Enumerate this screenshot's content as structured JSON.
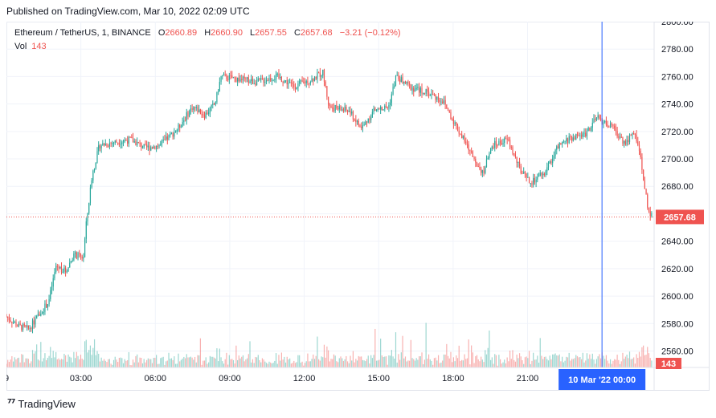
{
  "published": "Published on TradingView.com, Mar 10, 2022 02:09 UTC",
  "legend": {
    "symbol": "Ethereum / TetherUS, 1, BINANCE",
    "open_label": "O",
    "open": "2660.89",
    "high_label": "H",
    "high": "2660.90",
    "low_label": "L",
    "low": "2657.55",
    "close_label": "C",
    "close": "2657.68",
    "change": "−3.21 (−0.12%)",
    "vol_label": "Vol",
    "vol": "143"
  },
  "footer": {
    "brand": "TradingView"
  },
  "colors": {
    "up": "#26a69a",
    "down": "#ef5350",
    "crosshair": "#2962ff",
    "grid": "#f0f3fa"
  },
  "chart_data": {
    "type": "candlestick",
    "symbol": "Ethereum / TetherUS",
    "interval": "1",
    "exchange": "BINANCE",
    "ylim": [
      2548,
      2800
    ],
    "y_ticks": [
      2560,
      2580,
      2600,
      2620,
      2640,
      2660,
      2680,
      2700,
      2720,
      2740,
      2760,
      2780,
      2800
    ],
    "y_tick_labels": [
      "2560.00",
      "2580.00",
      "2600.00",
      "2620.00",
      "2640.00",
      "2660.00",
      "2680.00",
      "2700.00",
      "2720.00",
      "2740.00",
      "2760.00",
      "2780.00",
      "2800.00"
    ],
    "x_ticks": [
      {
        "label": "9",
        "hour": 0
      },
      {
        "label": "03:00",
        "hour": 3
      },
      {
        "label": "06:00",
        "hour": 6
      },
      {
        "label": "09:00",
        "hour": 9
      },
      {
        "label": "12:00",
        "hour": 12
      },
      {
        "label": "15:00",
        "hour": 15
      },
      {
        "label": "18:00",
        "hour": 18
      },
      {
        "label": "21:00",
        "hour": 21
      },
      {
        "label": "00:00",
        "hour": 24
      }
    ],
    "x_range_hours": [
      0,
      26.1
    ],
    "crosshair_hour": 24.0,
    "crosshair_label": "10 Mar '22   00:00",
    "last_price": 2657.68,
    "last_price_label": "2657.68",
    "last_volume_label": "143",
    "price_path": [
      {
        "h": 0.0,
        "p": 2585
      },
      {
        "h": 0.5,
        "p": 2578
      },
      {
        "h": 0.9,
        "p": 2576
      },
      {
        "h": 1.3,
        "p": 2586
      },
      {
        "h": 1.7,
        "p": 2596
      },
      {
        "h": 2.0,
        "p": 2622
      },
      {
        "h": 2.4,
        "p": 2618
      },
      {
        "h": 2.7,
        "p": 2630
      },
      {
        "h": 3.1,
        "p": 2628
      },
      {
        "h": 3.2,
        "p": 2650
      },
      {
        "h": 3.45,
        "p": 2688
      },
      {
        "h": 3.75,
        "p": 2710
      },
      {
        "h": 4.3,
        "p": 2712
      },
      {
        "h": 5.0,
        "p": 2714
      },
      {
        "h": 5.6,
        "p": 2708
      },
      {
        "h": 6.2,
        "p": 2710
      },
      {
        "h": 6.9,
        "p": 2722
      },
      {
        "h": 7.5,
        "p": 2738
      },
      {
        "h": 8.0,
        "p": 2732
      },
      {
        "h": 8.4,
        "p": 2740
      },
      {
        "h": 8.65,
        "p": 2760
      },
      {
        "h": 9.4,
        "p": 2758
      },
      {
        "h": 10.1,
        "p": 2756
      },
      {
        "h": 10.9,
        "p": 2760
      },
      {
        "h": 11.6,
        "p": 2753
      },
      {
        "h": 12.3,
        "p": 2758
      },
      {
        "h": 12.75,
        "p": 2763
      },
      {
        "h": 13.0,
        "p": 2738
      },
      {
        "h": 13.8,
        "p": 2735
      },
      {
        "h": 14.3,
        "p": 2722
      },
      {
        "h": 14.8,
        "p": 2735
      },
      {
        "h": 15.4,
        "p": 2738
      },
      {
        "h": 15.7,
        "p": 2760
      },
      {
        "h": 16.3,
        "p": 2752
      },
      {
        "h": 17.0,
        "p": 2748
      },
      {
        "h": 17.6,
        "p": 2742
      },
      {
        "h": 18.0,
        "p": 2728
      },
      {
        "h": 18.6,
        "p": 2708
      },
      {
        "h": 19.2,
        "p": 2690
      },
      {
        "h": 19.6,
        "p": 2710
      },
      {
        "h": 20.2,
        "p": 2714
      },
      {
        "h": 20.7,
        "p": 2692
      },
      {
        "h": 21.1,
        "p": 2682
      },
      {
        "h": 21.7,
        "p": 2690
      },
      {
        "h": 22.2,
        "p": 2708
      },
      {
        "h": 22.7,
        "p": 2715
      },
      {
        "h": 23.3,
        "p": 2718
      },
      {
        "h": 23.8,
        "p": 2730
      },
      {
        "h": 24.4,
        "p": 2723
      },
      {
        "h": 24.9,
        "p": 2712
      },
      {
        "h": 25.3,
        "p": 2718
      },
      {
        "h": 25.45,
        "p": 2712
      },
      {
        "h": 25.75,
        "p": 2675
      },
      {
        "h": 25.9,
        "p": 2660
      },
      {
        "h": 26.0,
        "p": 2658
      }
    ]
  }
}
